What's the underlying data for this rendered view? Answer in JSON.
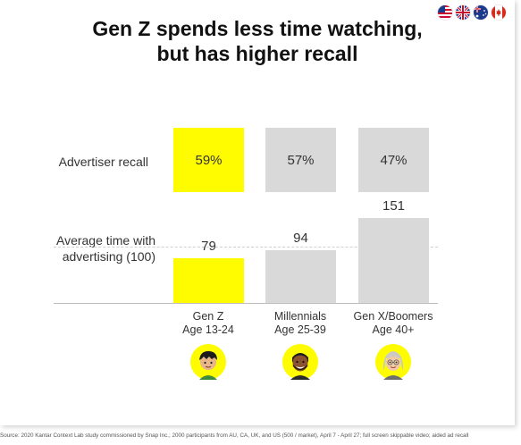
{
  "title": {
    "line1": "Gen Z spends less time watching,",
    "line2": "but has higher recall"
  },
  "flags": [
    "us-flag-icon",
    "uk-flag-icon",
    "australia-flag-icon",
    "canada-flag-icon"
  ],
  "chart_data": {
    "type": "bar",
    "categories": [
      {
        "line1": "Gen Z",
        "line2": "Age 13-24",
        "avatar": "gen-z-avatar-icon"
      },
      {
        "line1": "Millennials",
        "line2": "Age 25-39",
        "avatar": "millennial-avatar-icon"
      },
      {
        "line1": "Gen X/Boomers",
        "line2": "Age 40+",
        "avatar": "boomer-avatar-icon"
      }
    ],
    "recall": {
      "label": "Advertiser recall",
      "labels": [
        "59%",
        "57%",
        "47%"
      ],
      "values": [
        59,
        57,
        47
      ]
    },
    "time": {
      "label_line1": "Average time with",
      "label_line2": "advertising (100)",
      "labels": [
        "79",
        "94",
        "151"
      ],
      "values": [
        79,
        94,
        151
      ],
      "reference": 100
    },
    "colors": {
      "highlight": "#FFFC00",
      "neutral": "#D9D9D9"
    }
  },
  "source": "Source: 2020 Kantar Context Lab study commissioned by Snap Inc.; 2000 participants from AU, CA, UK, and US (500 / market), April 7 - April 27; full screen skippable video; aided ad recall"
}
